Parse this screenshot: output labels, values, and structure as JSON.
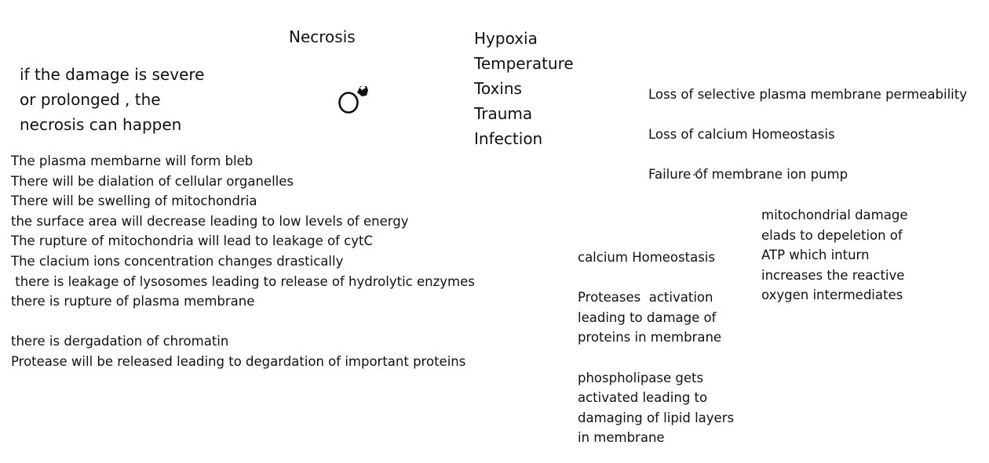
{
  "title": "Necrosis",
  "intro": [
    "if the damage is severe",
    "or prolonged , the",
    "necrosis can happen"
  ],
  "causes": [
    "Hypoxia",
    "Temperature",
    "Toxins",
    "Trauma",
    "Infection"
  ],
  "effects": [
    "The plasma membarne will form bleb",
    "There will be dialation of cellular organelles",
    "There will be swelling of mitochondria",
    "the surface area will decrease leading to low levels of energy",
    "The rupture of mitochondria will lead to leakage of cytC",
    "The clacium ions concentration changes drastically",
    " there is leakage of lysosomes leading to release of hydrolytic enzymes",
    "there is rupture of plasma membrane",
    "",
    "there is dergadation of chromatin",
    "Protease will be released leading to degardation of important proteins"
  ],
  "mechanisms": [
    "Loss of selective plasma membrane permeability",
    "Loss of calcium Homeostasis",
    "Failure of membrane ion pump"
  ],
  "calcium": [
    "calcium Homeostasis",
    "",
    "Proteases  activation",
    "leading to damage of",
    "proteins in membrane",
    "",
    "phospholipase gets",
    "activated leading to",
    "damaging of lipid layers",
    "in membrane"
  ],
  "mitochondria": [
    "mitochondrial damage",
    "elads to depeletion of",
    "ATP which inturn",
    "increases the reactive",
    "oxygen intermediates"
  ],
  "icons": {
    "pen_cursor": "pen-cursor-icon",
    "mini_pen": "pen-icon"
  },
  "colors": {
    "text": "#111111",
    "background": "#ffffff"
  }
}
